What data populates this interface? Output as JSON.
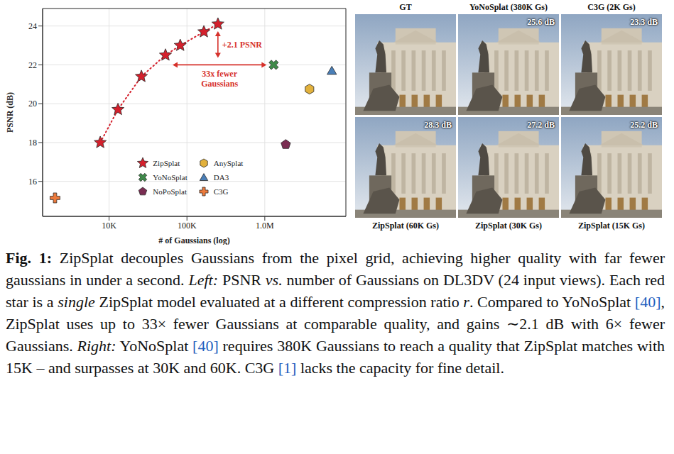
{
  "chart_data": {
    "type": "scatter",
    "log": "x",
    "grid": true,
    "legend": "lower center",
    "x_label": "# of Gaussians (log)",
    "y_label": "PSNR (dB)",
    "xlim": [
      1400,
      11000000
    ],
    "xticks": [
      {
        "value": 10000,
        "label": "10K"
      },
      {
        "value": 100000,
        "label": "100K"
      },
      {
        "value": 1000000,
        "label": "1.0M"
      }
    ],
    "ylim": [
      14.2,
      24.9
    ],
    "yticks": [
      16,
      18,
      20,
      22,
      24
    ],
    "series": [
      {
        "name": "ZipSplat",
        "color": "#d4202c",
        "marker": "star",
        "line_style": "dotted",
        "x": [
          7700,
          13000,
          26000,
          53000,
          82000,
          165000,
          250000
        ],
        "values": [
          18.0,
          19.7,
          21.4,
          22.5,
          23.0,
          23.7,
          24.1
        ]
      },
      {
        "name": "YoNoSplat",
        "color": "#3f8a4a",
        "marker": "x",
        "x": [
          1300000
        ],
        "values": [
          22.0
        ]
      },
      {
        "name": "NoPoSplat",
        "color": "#7a2d52",
        "marker": "pentagon",
        "x": [
          1860000
        ],
        "values": [
          17.9
        ]
      },
      {
        "name": "AnySplat",
        "color": "#e2b13c",
        "marker": "hexagon",
        "x": [
          3750000
        ],
        "values": [
          20.75
        ]
      },
      {
        "name": "DA3",
        "color": "#4a7fb8",
        "marker": "triangle",
        "x": [
          7260000
        ],
        "values": [
          21.7
        ]
      },
      {
        "name": "C3G",
        "color": "#ec7a3c",
        "marker": "plus",
        "x": [
          2020
        ],
        "values": [
          15.15
        ]
      }
    ],
    "annotations": [
      {
        "text": "+2.1 PSNR"
      },
      {
        "text": "33x fewer Gaussians"
      }
    ]
  },
  "panels": {
    "items": [
      {
        "label": "GT",
        "position": "top"
      },
      {
        "label": "YoNoSplat (380K Gs)",
        "position": "top",
        "psnr": "25.6 dB"
      },
      {
        "label": "C3G (2K Gs)",
        "position": "top",
        "psnr": "23.3 dB"
      },
      {
        "label": "ZipSplat (60K Gs)",
        "position": "bottom",
        "psnr": "28.3 dB"
      },
      {
        "label": "ZipSplat (30K Gs)",
        "position": "bottom",
        "psnr": "27.2 dB"
      },
      {
        "label": "ZipSplat (15K Gs)",
        "position": "bottom",
        "psnr": "25.2 dB"
      }
    ]
  },
  "caption": [
    {
      "text": "Fig. 1:",
      "style": "bold"
    },
    {
      "text": " ZipSplat decouples Gaussians from the pixel grid, achieving higher quality with far fewer gaussians in under a second. "
    },
    {
      "text": "Left:",
      "style": "italic"
    },
    {
      "text": " PSNR "
    },
    {
      "text": "vs.",
      "style": "italic"
    },
    {
      "text": " number of Gaussians on DL3DV (24 input views). Each red star is a "
    },
    {
      "text": "single",
      "style": "italic"
    },
    {
      "text": " ZipSplat model evaluated at a different compression ratio "
    },
    {
      "text": "r",
      "style": "italic"
    },
    {
      "text": ". Compared to YoNoSplat "
    },
    {
      "text": "[40]",
      "style": "cite"
    },
    {
      "text": ", ZipSplat uses up to 33× fewer Gaussians at comparable quality, and gains ∼2.1 dB with 6× fewer Gaussians. "
    },
    {
      "text": "Right:",
      "style": "italic"
    },
    {
      "text": " YoNoSplat "
    },
    {
      "text": "[40]",
      "style": "cite"
    },
    {
      "text": " requires 380K Gaussians to reach a quality that ZipSplat matches with 15K – and surpasses at 30K and 60K. C3G "
    },
    {
      "text": "[1]",
      "style": "cite"
    },
    {
      "text": " lacks the capacity for fine detail."
    }
  ]
}
